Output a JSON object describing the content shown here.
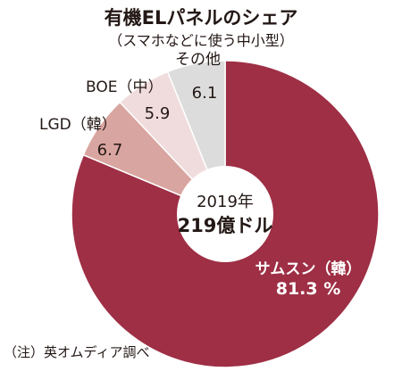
{
  "title": "有機ELパネルのシェア",
  "subtitle": "（スマホなどに使う中小型）",
  "source": "（注）英オムディア調べ",
  "chart_data": {
    "type": "pie",
    "title": "有機ELパネルのシェア",
    "subtitle": "（スマホなどに使う中小型）",
    "center_label": {
      "year": "2019年",
      "total": "219億ドル"
    },
    "slices": [
      {
        "label": "サムスン（韓）",
        "value": 81.3,
        "value_text": "81.3 %",
        "color": "#9e2f45"
      },
      {
        "label": "LGD（韓）",
        "value": 6.7,
        "value_text": "6.7",
        "color": "#d9a5a0"
      },
      {
        "label": "BOE（中）",
        "value": 5.9,
        "value_text": "5.9",
        "color": "#f0dcdc"
      },
      {
        "label": "その他",
        "value": 6.1,
        "value_text": "6.1",
        "color": "#dcdcdc"
      }
    ],
    "slice_order": "clockwise from top, largest first drawn counter-clockwise",
    "legend": "none (direct labels)"
  }
}
